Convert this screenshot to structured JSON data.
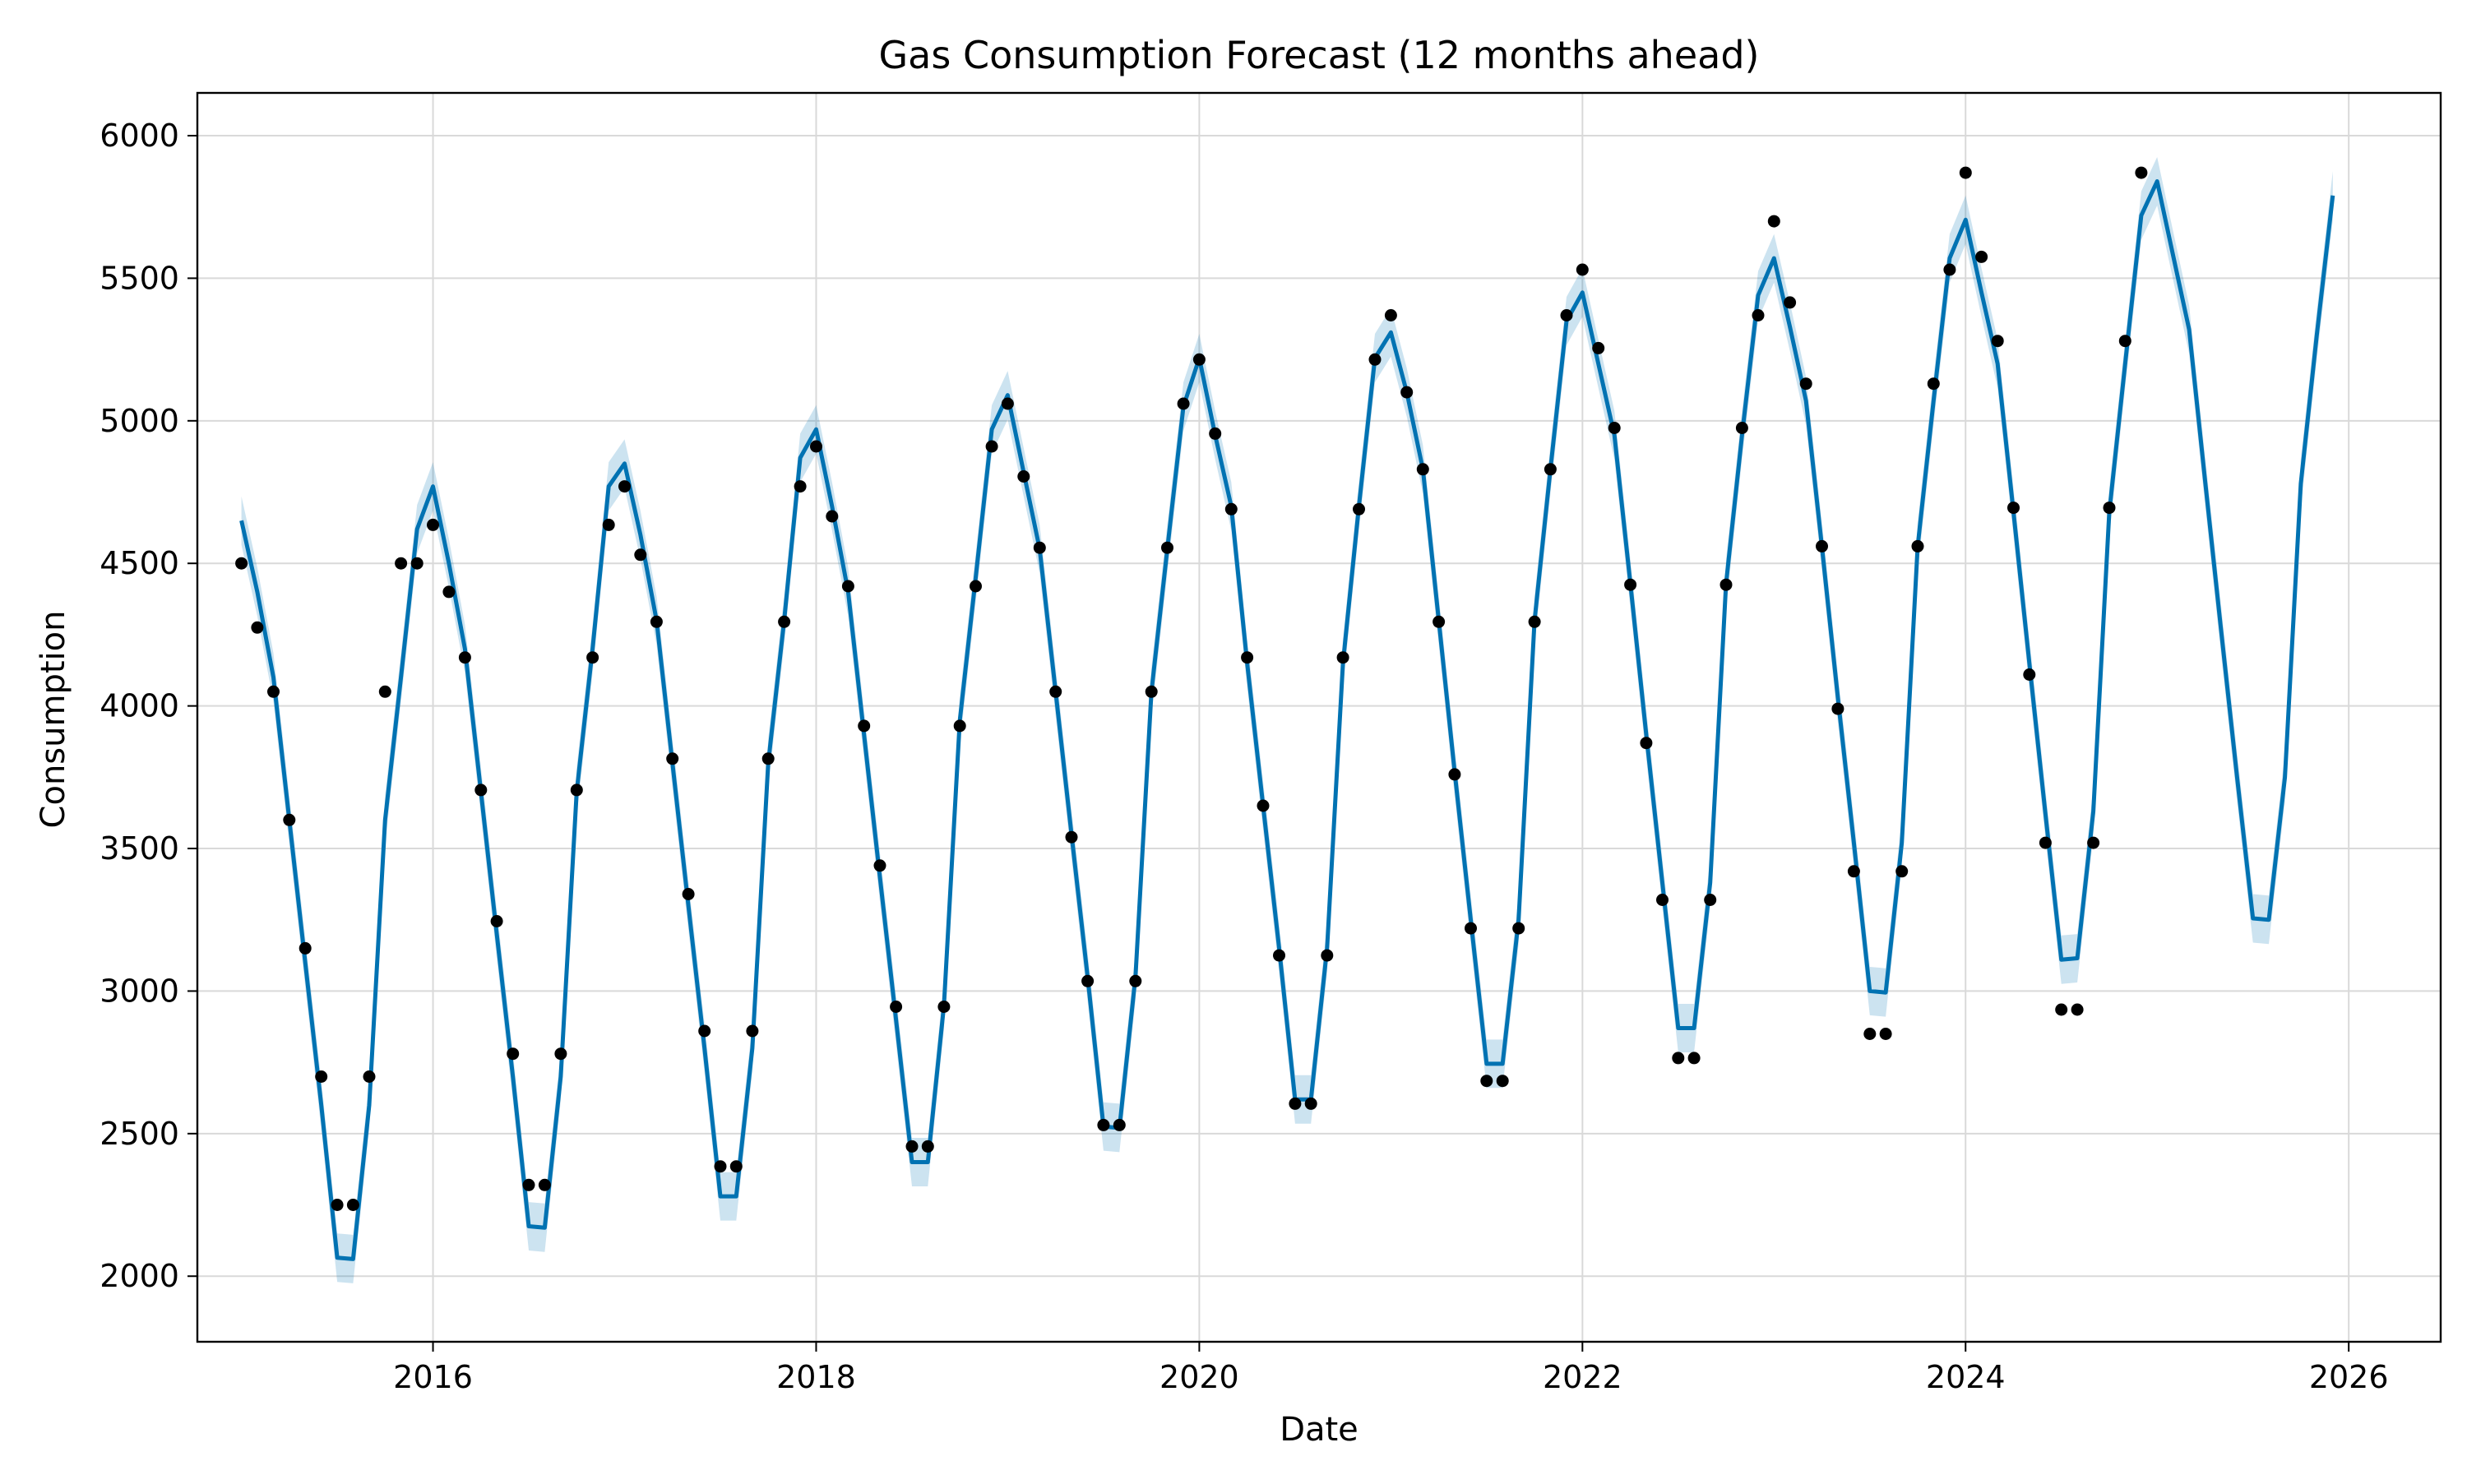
{
  "chart_data": {
    "type": "line",
    "title": "Gas Consumption Forecast (12 months ahead)",
    "xlabel": "Date",
    "ylabel": "Consumption",
    "xlim": [
      2014.77,
      2026.48
    ],
    "ylim": [
      1770,
      6150
    ],
    "grid": true,
    "x_ticks": [
      {
        "label": "2016",
        "value": 2016
      },
      {
        "label": "2018",
        "value": 2018
      },
      {
        "label": "2020",
        "value": 2020
      },
      {
        "label": "2022",
        "value": 2022
      },
      {
        "label": "2024",
        "value": 2024
      },
      {
        "label": "2026",
        "value": 2026
      }
    ],
    "y_ticks": [
      {
        "label": "2000",
        "value": 2000
      },
      {
        "label": "2500",
        "value": 2500
      },
      {
        "label": "3000",
        "value": 3000
      },
      {
        "label": "3500",
        "value": 3500
      },
      {
        "label": "4000",
        "value": 4000
      },
      {
        "label": "4500",
        "value": 4500
      },
      {
        "label": "5000",
        "value": 5000
      },
      {
        "label": "5500",
        "value": 5500
      },
      {
        "label": "6000",
        "value": 6000
      }
    ],
    "colors": {
      "forecast_line": "#0072B2",
      "interval_band": "#0072B2",
      "observed_points": "#000000",
      "grid": "#d9d9d9"
    },
    "series": [
      {
        "role": "observed",
        "style": "points",
        "x": [
          2015.0,
          2015.083,
          2015.167,
          2015.25,
          2015.333,
          2015.417,
          2015.5,
          2015.583,
          2015.667,
          2015.75,
          2015.833,
          2015.917,
          2016.0,
          2016.083,
          2016.167,
          2016.25,
          2016.333,
          2016.417,
          2016.5,
          2016.583,
          2016.667,
          2016.75,
          2016.833,
          2016.917,
          2017.0,
          2017.083,
          2017.167,
          2017.25,
          2017.333,
          2017.417,
          2017.5,
          2017.583,
          2017.667,
          2017.75,
          2017.833,
          2017.917,
          2018.0,
          2018.083,
          2018.167,
          2018.25,
          2018.333,
          2018.417,
          2018.5,
          2018.583,
          2018.667,
          2018.75,
          2018.833,
          2018.917,
          2019.0,
          2019.083,
          2019.167,
          2019.25,
          2019.333,
          2019.417,
          2019.5,
          2019.583,
          2019.667,
          2019.75,
          2019.833,
          2019.917,
          2020.0,
          2020.083,
          2020.167,
          2020.25,
          2020.333,
          2020.417,
          2020.5,
          2020.583,
          2020.667,
          2020.75,
          2020.833,
          2020.917,
          2021.0,
          2021.083,
          2021.167,
          2021.25,
          2021.333,
          2021.417,
          2021.5,
          2021.583,
          2021.667,
          2021.75,
          2021.833,
          2021.917,
          2022.0,
          2022.083,
          2022.167,
          2022.25,
          2022.333,
          2022.417,
          2022.5,
          2022.583,
          2022.667,
          2022.75,
          2022.833,
          2022.917,
          2023.0,
          2023.083,
          2023.167,
          2023.25,
          2023.333,
          2023.417,
          2023.5,
          2023.583,
          2023.667,
          2023.75,
          2023.833,
          2023.917,
          2024.0,
          2024.083,
          2024.167,
          2024.25,
          2024.333,
          2024.417,
          2024.5,
          2024.583,
          2024.667,
          2024.75,
          2024.833,
          2024.917
        ],
        "y": [
          4500,
          4275,
          4050,
          3600,
          3150,
          2700,
          2250,
          2250,
          2700,
          4050,
          4500,
          4500,
          4635,
          4400,
          4170,
          3705,
          3245,
          2780,
          2320,
          2320,
          2780,
          3705,
          4170,
          4635,
          4770,
          4530,
          4295,
          3815,
          3340,
          2860,
          2385,
          2385,
          2860,
          3815,
          4295,
          4770,
          4910,
          4665,
          4420,
          3930,
          3440,
          2945,
          2455,
          2455,
          2945,
          3930,
          4420,
          4910,
          5060,
          4805,
          4555,
          4050,
          3540,
          3035,
          2530,
          2530,
          3035,
          4050,
          4555,
          5060,
          5215,
          4955,
          4690,
          4170,
          3650,
          3125,
          2605,
          2605,
          3125,
          4170,
          4690,
          5215,
          5370,
          5100,
          4830,
          4295,
          3760,
          3220,
          2685,
          2685,
          3220,
          4295,
          4830,
          5370,
          5530,
          5255,
          4975,
          4425,
          3870,
          3320,
          2765,
          2765,
          3320,
          4425,
          4975,
          5370,
          5700,
          5415,
          5130,
          4560,
          3990,
          3420,
          2850,
          2850,
          3420,
          4560,
          5130,
          5530,
          5870,
          5575,
          5280,
          4695,
          4110,
          3520,
          2935,
          2935,
          3520,
          4695,
          5280,
          5870
        ]
      },
      {
        "role": "forecast",
        "style": "line",
        "x": [
          2015.0,
          2015.083,
          2015.167,
          2015.25,
          2015.333,
          2015.417,
          2015.5,
          2015.583,
          2015.667,
          2015.75,
          2015.833,
          2015.917,
          2016.0,
          2016.083,
          2016.167,
          2016.25,
          2016.333,
          2016.417,
          2016.5,
          2016.583,
          2016.667,
          2016.75,
          2016.833,
          2016.917,
          2017.0,
          2017.083,
          2017.167,
          2017.25,
          2017.333,
          2017.417,
          2017.5,
          2017.583,
          2017.667,
          2017.75,
          2017.833,
          2017.917,
          2018.0,
          2018.083,
          2018.167,
          2018.25,
          2018.333,
          2018.417,
          2018.5,
          2018.583,
          2018.667,
          2018.75,
          2018.833,
          2018.917,
          2019.0,
          2019.083,
          2019.167,
          2019.25,
          2019.333,
          2019.417,
          2019.5,
          2019.583,
          2019.667,
          2019.75,
          2019.833,
          2019.917,
          2020.0,
          2020.083,
          2020.167,
          2020.25,
          2020.333,
          2020.417,
          2020.5,
          2020.583,
          2020.667,
          2020.75,
          2020.833,
          2020.917,
          2021.0,
          2021.083,
          2021.167,
          2021.25,
          2021.333,
          2021.417,
          2021.5,
          2021.583,
          2021.667,
          2021.75,
          2021.833,
          2021.917,
          2022.0,
          2022.083,
          2022.167,
          2022.25,
          2022.333,
          2022.417,
          2022.5,
          2022.583,
          2022.667,
          2022.75,
          2022.833,
          2022.917,
          2023.0,
          2023.083,
          2023.167,
          2023.25,
          2023.333,
          2023.417,
          2023.5,
          2023.583,
          2023.667,
          2023.75,
          2023.833,
          2023.917,
          2024.0,
          2024.083,
          2024.167,
          2024.25,
          2024.333,
          2024.417,
          2024.5,
          2024.583,
          2024.667,
          2024.75,
          2024.833,
          2024.917,
          2025.0,
          2025.083,
          2025.167,
          2025.25,
          2025.333,
          2025.417,
          2025.5,
          2025.583,
          2025.667,
          2025.75,
          2025.833,
          2025.917
        ],
        "y": [
          4650,
          4400,
          4100,
          3600,
          3100,
          2600,
          2065,
          2060,
          2600,
          3600,
          4100,
          4620,
          4770,
          4500,
          4200,
          3700,
          3200,
          2700,
          2175,
          2170,
          2700,
          3700,
          4200,
          4770,
          4850,
          4600,
          4300,
          3800,
          3300,
          2800,
          2280,
          2280,
          2800,
          3800,
          4300,
          4870,
          4970,
          4700,
          4400,
          3900,
          3400,
          2900,
          2400,
          2400,
          2950,
          3950,
          4450,
          4970,
          5090,
          4820,
          4550,
          4050,
          3550,
          3050,
          2525,
          2520,
          3050,
          4050,
          4550,
          5050,
          5220,
          4950,
          4700,
          4150,
          3650,
          3150,
          2620,
          2620,
          3150,
          4150,
          4700,
          5220,
          5310,
          5100,
          4830,
          4300,
          3770,
          3250,
          2745,
          2745,
          3250,
          4300,
          4830,
          5350,
          5450,
          5200,
          4950,
          4430,
          3900,
          3380,
          2870,
          2870,
          3380,
          4430,
          4950,
          5440,
          5570,
          5330,
          5070,
          4560,
          4030,
          3520,
          3000,
          2995,
          3520,
          4560,
          5070,
          5570,
          5705,
          5450,
          5200,
          4680,
          4150,
          3620,
          3110,
          3115,
          3630,
          4680,
          5200,
          5720,
          5840,
          5580,
          5320,
          4790,
          4270,
          3750,
          3255,
          3250,
          3750,
          4780,
          5300,
          5790
        ]
      },
      {
        "role": "uncertainty_interval",
        "style": "band",
        "half_width": 85
      }
    ]
  }
}
